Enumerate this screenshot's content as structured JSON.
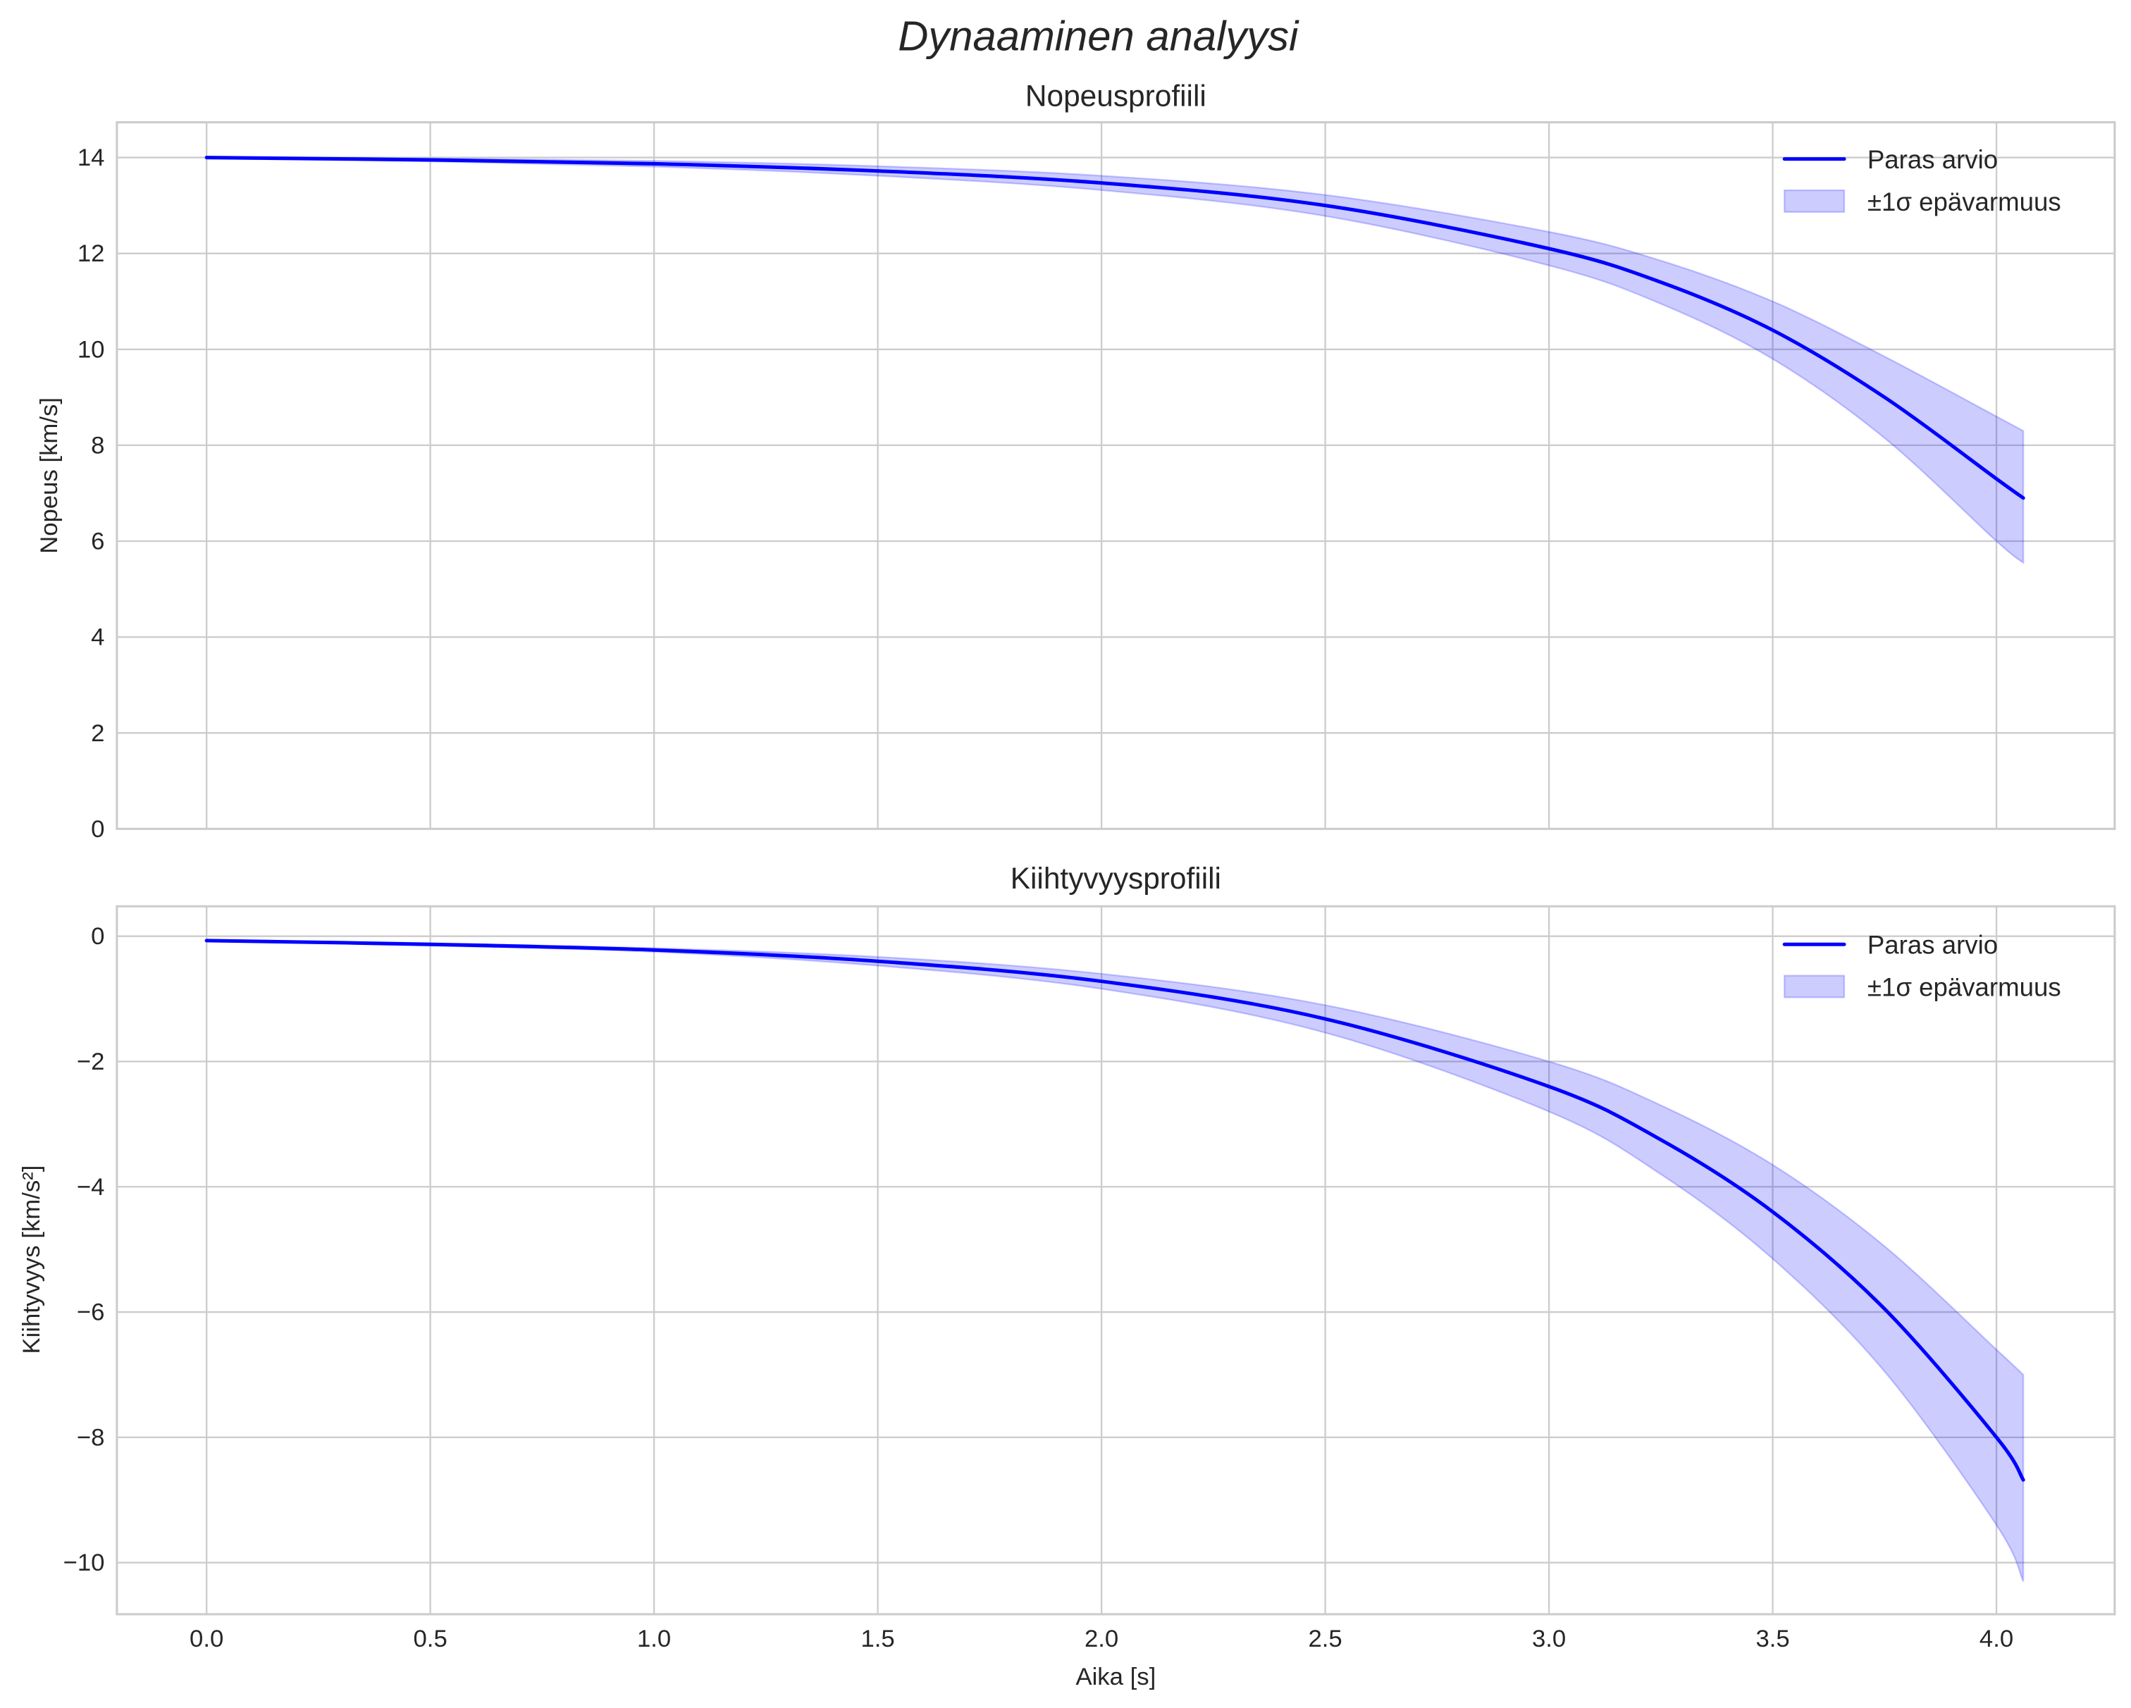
{
  "figure": {
    "suptitle": "Dynaaminen analyysi",
    "xlabel": "Aika [s]",
    "line_color": "#0000ff",
    "band_color": "#0000ff",
    "band_alpha": 0.2,
    "grid_color": "#cccccc"
  },
  "panels": [
    {
      "title": "Nopeusprofiili",
      "ylabel": "Nopeus [km/s]",
      "yticks": [
        "0",
        "2",
        "4",
        "6",
        "8",
        "10",
        "12",
        "14"
      ],
      "xticks": [],
      "legend": {
        "line_label": "Paras arvio",
        "band_label": "±1σ epävarmuus"
      }
    },
    {
      "title": "Kiihtyvyysprofiili",
      "ylabel": "Kiihtyvyys [km/s²]",
      "yticks": [
        "0",
        "−2",
        "−4",
        "−6",
        "−8",
        "−10"
      ],
      "xticks": [
        "0.0",
        "0.5",
        "1.0",
        "1.5",
        "2.0",
        "2.5",
        "3.0",
        "3.5",
        "4.0"
      ],
      "legend": {
        "line_label": "Paras arvio",
        "band_label": "±1σ epävarmuus"
      }
    }
  ],
  "chart_data": [
    {
      "type": "line",
      "title": "Nopeusprofiili",
      "xlabel": "Aika [s]",
      "ylabel": "Nopeus [km/s]",
      "xlim": [
        -0.2,
        4.26
      ],
      "ylim": [
        0,
        14.7
      ],
      "grid": true,
      "legend_position": "upper right",
      "x": [
        0.0,
        0.5,
        1.0,
        1.5,
        2.0,
        2.5,
        3.0,
        3.25,
        3.5,
        3.75,
        4.0,
        4.06
      ],
      "series": [
        {
          "name": "Paras arvio",
          "values": [
            14.0,
            13.95,
            13.87,
            13.72,
            13.47,
            13.0,
            12.1,
            11.4,
            10.4,
            9.0,
            7.3,
            6.9
          ]
        },
        {
          "name": "±1σ epävarmuus (upper)",
          "values": [
            14.02,
            13.98,
            13.93,
            13.82,
            13.62,
            13.22,
            12.45,
            11.85,
            11.0,
            9.85,
            8.6,
            8.3
          ]
        },
        {
          "name": "±1σ epävarmuus (lower)",
          "values": [
            13.98,
            13.92,
            13.81,
            13.62,
            13.32,
            12.78,
            11.75,
            10.95,
            9.8,
            8.15,
            6.0,
            5.55
          ]
        }
      ]
    },
    {
      "type": "line",
      "title": "Kiihtyvyysprofiili",
      "xlabel": "Aika [s]",
      "ylabel": "Kiihtyvyys [km/s²]",
      "xlim": [
        -0.2,
        4.26
      ],
      "ylim": [
        -10.8,
        0.48
      ],
      "grid": true,
      "legend_position": "upper right",
      "x": [
        0.0,
        0.5,
        1.0,
        1.5,
        2.0,
        2.5,
        3.0,
        3.25,
        3.5,
        3.75,
        4.0,
        4.06
      ],
      "series": [
        {
          "name": "Paras arvio",
          "values": [
            -0.07,
            -0.13,
            -0.22,
            -0.4,
            -0.72,
            -1.32,
            -2.4,
            -3.25,
            -4.4,
            -5.95,
            -8.0,
            -8.68
          ]
        },
        {
          "name": "±1σ epävarmuus (upper)",
          "values": [
            -0.06,
            -0.11,
            -0.19,
            -0.33,
            -0.6,
            -1.1,
            -2.0,
            -2.7,
            -3.65,
            -4.95,
            -6.6,
            -7.0
          ]
        },
        {
          "name": "±1σ epävarmuus (lower)",
          "values": [
            -0.08,
            -0.15,
            -0.25,
            -0.47,
            -0.84,
            -1.54,
            -2.8,
            -3.8,
            -5.15,
            -6.95,
            -9.4,
            -10.3
          ]
        }
      ]
    }
  ]
}
